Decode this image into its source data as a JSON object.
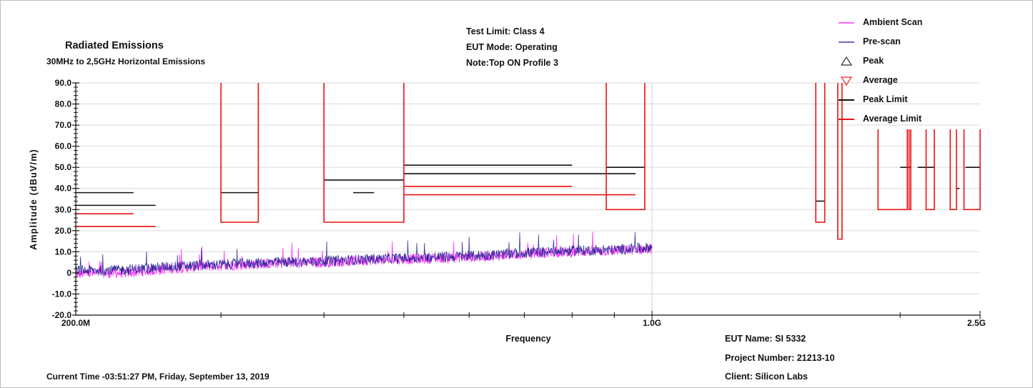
{
  "chart_data": {
    "type": "line",
    "title": "Radiated Emissions",
    "subtitle": "30MHz to 2,5GHz Horizontal Emissions",
    "header_notes": [
      "Test Limit: Class 4",
      "EUT Mode: Operating",
      "Note:Top ON Profile 3"
    ],
    "xlabel": "Frequency",
    "ylabel": "Amplitude (dBuV/m)",
    "x_scale": "log",
    "xlim_mhz": [
      200,
      2500
    ],
    "x_tick_labels": [
      "200.0M",
      "1.0G",
      "2.5G"
    ],
    "ylim": [
      -20,
      90
    ],
    "y_ticks": [
      90,
      80,
      70,
      60,
      50,
      40,
      30,
      20,
      10,
      0,
      -10,
      -20
    ],
    "y_tick_labels": [
      "90.0",
      "80.0",
      "70.0",
      "60.0",
      "50.0",
      "40.0",
      "30.0",
      "20.0",
      "10.0",
      "0",
      "-10.0",
      "-20.0"
    ],
    "legend_position": "top-right",
    "legend": [
      {
        "label": "Ambient Scan",
        "symbol": "line",
        "color": "#ff33ff"
      },
      {
        "label": "Pre-scan",
        "symbol": "line",
        "color": "#3a3ab8"
      },
      {
        "label": "Peak",
        "symbol": "triangle-up",
        "color": "#333333"
      },
      {
        "label": "Average",
        "symbol": "triangle-down",
        "color": "#ff2222"
      },
      {
        "label": "Peak Limit",
        "symbol": "line",
        "color": "#111111"
      },
      {
        "label": "Average Limit",
        "symbol": "line",
        "color": "#ee1111"
      }
    ],
    "series": [
      {
        "name": "Ambient Scan",
        "color": "#ff33ff",
        "x_range_mhz": [
          200,
          1000
        ],
        "trend_points": [
          [
            200,
            -0.5
          ],
          [
            230,
            0
          ],
          [
            260,
            2
          ],
          [
            300,
            3.5
          ],
          [
            350,
            4.5
          ],
          [
            400,
            5
          ],
          [
            450,
            6
          ],
          [
            500,
            6.5
          ],
          [
            600,
            7.5
          ],
          [
            700,
            9
          ],
          [
            800,
            10
          ],
          [
            900,
            10.5
          ],
          [
            1000,
            11.5
          ]
        ]
      },
      {
        "name": "Pre-scan",
        "color": "#1f1f8f",
        "x_range_mhz": [
          200,
          1000
        ],
        "trend_points": [
          [
            200,
            1
          ],
          [
            230,
            1.5
          ],
          [
            260,
            3
          ],
          [
            300,
            4
          ],
          [
            350,
            5
          ],
          [
            400,
            5.5
          ],
          [
            450,
            6.5
          ],
          [
            500,
            7
          ],
          [
            600,
            8
          ],
          [
            700,
            9.5
          ],
          [
            800,
            10.5
          ],
          [
            900,
            11
          ],
          [
            1000,
            12
          ]
        ]
      },
      {
        "name": "Peak Limit",
        "color": "#111111",
        "segments": [
          [
            [
              200,
              38
            ],
            [
              235,
              38
            ]
          ],
          [
            [
              200,
              32
            ],
            [
              250,
              32
            ]
          ],
          [
            [
              300,
              38
            ],
            [
              333,
              38
            ]
          ],
          [
            [
              400,
              44
            ],
            [
              500,
              44
            ]
          ],
          [
            [
              434,
              38
            ],
            [
              460,
              38
            ]
          ],
          [
            [
              500,
              51
            ],
            [
              800,
              51
            ]
          ],
          [
            [
              500,
              47
            ],
            [
              955,
              47
            ]
          ],
          [
            [
              880,
              50
            ],
            [
              980,
              50
            ]
          ],
          [
            [
              1580,
              34
            ],
            [
              1620,
              34
            ]
          ],
          [
            [
              2000,
              50
            ],
            [
              2060,
              50
            ]
          ],
          [
            [
              2100,
              50
            ],
            [
              2200,
              50
            ]
          ],
          [
            [
              2340,
              40
            ],
            [
              2360,
              40
            ]
          ],
          [
            [
              2400,
              50
            ],
            [
              2500,
              50
            ]
          ]
        ]
      },
      {
        "name": "Average Limit",
        "color": "#ee1111",
        "segments": [
          [
            [
              200,
              28
            ],
            [
              235,
              28
            ]
          ],
          [
            [
              200,
              22
            ],
            [
              250,
              22
            ]
          ],
          [
            [
              500,
              41
            ],
            [
              800,
              41
            ]
          ],
          [
            [
              500,
              37
            ],
            [
              955,
              37
            ]
          ]
        ],
        "bands": [
          {
            "x": [
              300,
              333
            ],
            "y": 24
          },
          {
            "x": [
              400,
              500
            ],
            "y": 24
          },
          {
            "x": [
              880,
              980
            ],
            "y": 30
          },
          {
            "x": [
              1580,
              1620
            ],
            "y": 24
          },
          {
            "x": [
              1680,
              1700
            ],
            "y": 16
          },
          {
            "x": [
              1880,
              2040
            ],
            "y": 30
          },
          {
            "x": [
              2050,
              2060
            ],
            "y": 30
          },
          {
            "x": [
              2150,
              2200
            ],
            "y": 30
          },
          {
            "x": [
              2300,
              2340
            ],
            "y": 30
          },
          {
            "x": [
              2390,
              2500
            ],
            "y": 30
          }
        ]
      }
    ]
  },
  "footer": {
    "eut_name": "EUT Name: SI 5332",
    "project_number": "Project Number: 21213-10",
    "client": "Client: Silicon Labs",
    "current_time": "Current Time -03:51:27 PM, Friday, September 13, 2019"
  }
}
